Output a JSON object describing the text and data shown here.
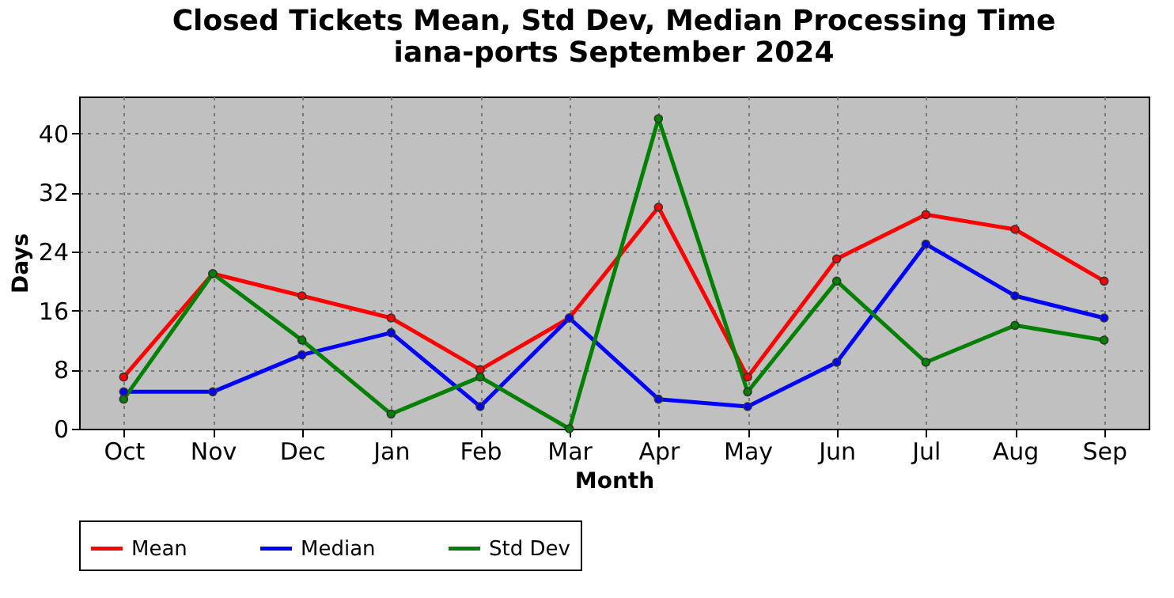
{
  "chart_data": {
    "type": "line",
    "title": "Closed Tickets Mean, Std Dev, Median Processing Time",
    "subtitle": "iana-ports September 2024",
    "xlabel": "Month",
    "ylabel": "Days",
    "categories": [
      "Oct",
      "Nov",
      "Dec",
      "Jan",
      "Feb",
      "Mar",
      "Apr",
      "May",
      "Jun",
      "Jul",
      "Aug",
      "Sep"
    ],
    "series": [
      {
        "name": "Mean",
        "color": "#ff0000",
        "values": [
          7,
          21,
          18,
          15,
          8,
          15,
          30,
          7,
          23,
          29,
          27,
          20
        ]
      },
      {
        "name": "Median",
        "color": "#0000ff",
        "values": [
          5,
          5,
          10,
          13,
          3,
          15,
          4,
          3,
          9,
          25,
          18,
          15
        ]
      },
      {
        "name": "Std Dev",
        "color": "#008000",
        "values": [
          4,
          21,
          12,
          2,
          7,
          0,
          42,
          5,
          20,
          9,
          14,
          12
        ]
      }
    ],
    "ylim": [
      0,
      45
    ],
    "yticks": [
      0,
      8,
      16,
      24,
      32,
      40
    ],
    "grid": true,
    "legend": "bottom",
    "marker": "circle",
    "line_style": "solid"
  }
}
